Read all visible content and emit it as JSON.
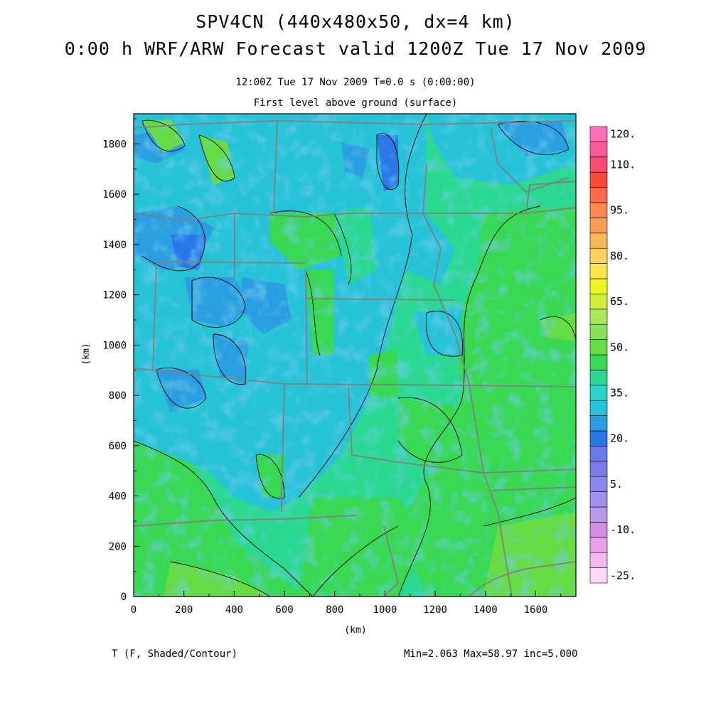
{
  "title_line1": "SPV4CN (440x480x50, dx=4 km)",
  "title_line2": "0:00 h WRF/ARW Forecast valid 1200Z Tue 17 Nov 2009",
  "subtitle_time": "12:00Z Tue 17 Nov 2009    T=0.0 s (0:00:00)",
  "subtitle_level": "First level above ground (surface)",
  "footer_left": "T (F, Shaded/Contour)",
  "footer_right": "Min=2.063 Max=58.97 inc=5.000",
  "chart_data": {
    "type": "heatmap",
    "xlabel": "(km)",
    "ylabel": "(km)",
    "xlim": [
      0,
      1760
    ],
    "ylim": [
      0,
      1920
    ],
    "xticks": [
      "0",
      "200",
      "400",
      "600",
      "800",
      "1000",
      "1200",
      "1400",
      "1600"
    ],
    "yticks": [
      "0",
      "200",
      "400",
      "600",
      "800",
      "1000",
      "1200",
      "1400",
      "1600",
      "1800"
    ],
    "colorbar": {
      "levels": [
        -25,
        -20,
        -15,
        -10,
        -5,
        0,
        5,
        10,
        15,
        20,
        25,
        30,
        35,
        40,
        45,
        50,
        55,
        60,
        65,
        70,
        75,
        80,
        85,
        90,
        95,
        100,
        105,
        110,
        115,
        120
      ],
      "labels": [
        "-25.",
        "-10.",
        "5.",
        "20.",
        "35.",
        "50.",
        "65.",
        "80.",
        "95.",
        "110.",
        "120."
      ],
      "colors": [
        "#ffd8f8",
        "#f4b8f0",
        "#e8a0e8",
        "#d48ee0",
        "#b898e8",
        "#a090f0",
        "#8888ee",
        "#7a7ae8",
        "#6a78e8",
        "#2a78e8",
        "#2a9ee0",
        "#26c2d8",
        "#2ad4c8",
        "#2ad890",
        "#38d852",
        "#66dc42",
        "#88e056",
        "#a8e85a",
        "#cdef38",
        "#eef41e",
        "#ffe44a",
        "#ffd060",
        "#f6b858",
        "#f89e54",
        "#ff8850",
        "#ff6a48",
        "#ff4838",
        "#ff4870",
        "#ff5a98",
        "#ff70b8"
      ]
    }
  }
}
